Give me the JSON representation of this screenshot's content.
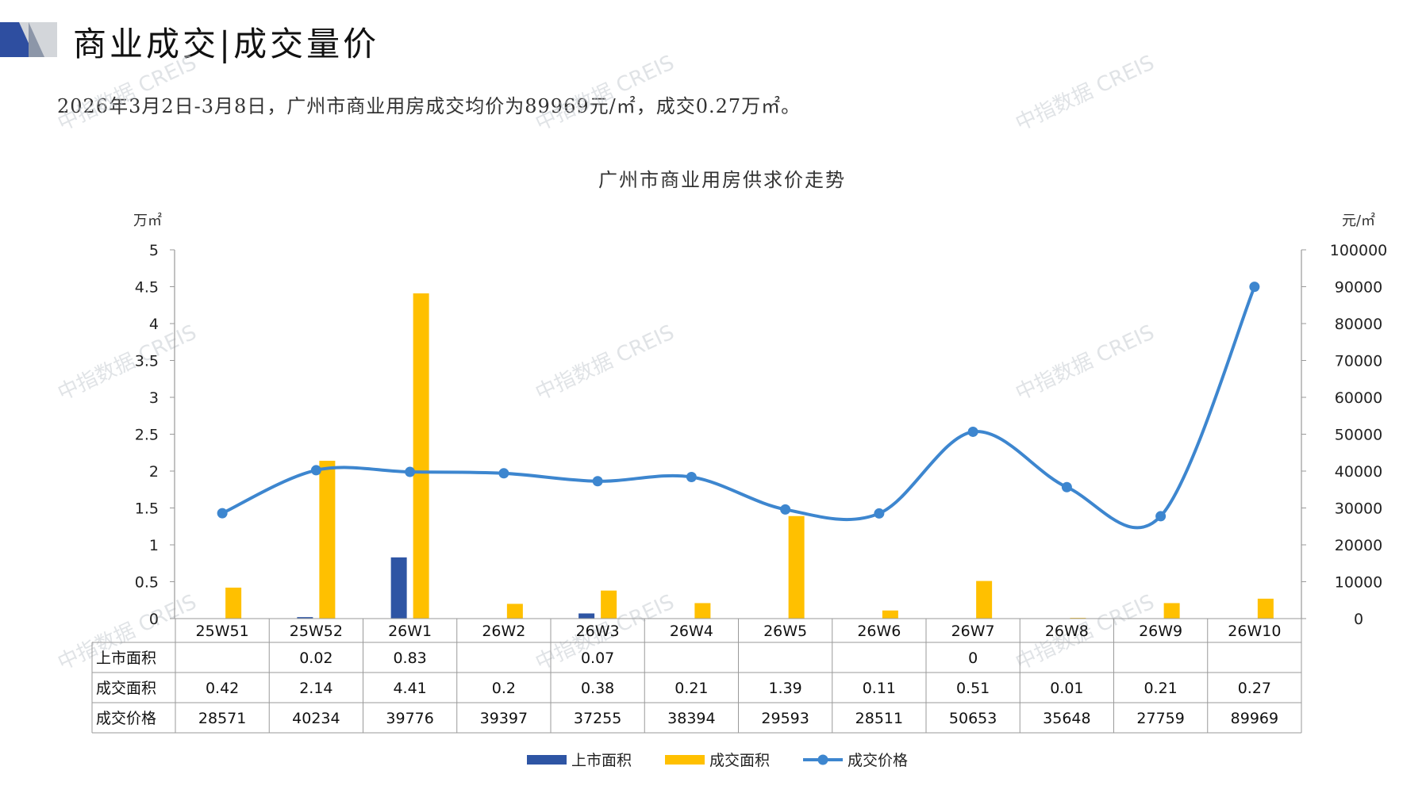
{
  "header": {
    "title": "商业成交|成交量价",
    "subtitle": "2026年3月2日-3月8日，广州市商业用房成交均价为89969元/㎡，成交0.27万㎡。"
  },
  "watermark": "中指数据 CREIS",
  "colors": {
    "supply": "#2e55a4",
    "deal_area": "#ffc000",
    "price": "#3d86cf",
    "logo_dark": "#2e4ea0",
    "logo_light": "#d3d6da"
  },
  "chart_data": {
    "type": "bar",
    "title": "广州市商业用房供求价走势",
    "y_left_unit": "万㎡",
    "y_right_unit": "元/㎡",
    "y_left_ticks": [
      "5",
      "4.5",
      "4",
      "3.5",
      "3",
      "2.5",
      "2",
      "1.5",
      "1",
      "0.5",
      "0"
    ],
    "y_right_ticks": [
      "100000",
      "90000",
      "80000",
      "70000",
      "60000",
      "50000",
      "40000",
      "30000",
      "20000",
      "10000",
      "0"
    ],
    "ylim_left": [
      0,
      5
    ],
    "ylim_right": [
      0,
      100000
    ],
    "categories": [
      "25W51",
      "25W52",
      "26W1",
      "26W2",
      "26W3",
      "26W4",
      "26W5",
      "26W6",
      "26W7",
      "26W8",
      "26W9",
      "26W10"
    ],
    "series": [
      {
        "name": "上市面积",
        "type": "bar",
        "axis": "left",
        "values": [
          null,
          0.02,
          0.83,
          null,
          0.07,
          null,
          null,
          null,
          0,
          null,
          null,
          null
        ],
        "labels": [
          "",
          "0.02",
          "0.83",
          "",
          "0.07",
          "",
          "",
          "",
          "0",
          "",
          "",
          ""
        ]
      },
      {
        "name": "成交面积",
        "type": "bar",
        "axis": "left",
        "values": [
          0.42,
          2.14,
          4.41,
          0.2,
          0.38,
          0.21,
          1.39,
          0.11,
          0.51,
          0.01,
          0.21,
          0.27
        ],
        "labels": [
          "0.42",
          "2.14",
          "4.41",
          "0.2",
          "0.38",
          "0.21",
          "1.39",
          "0.11",
          "0.51",
          "0.01",
          "0.21",
          "0.27"
        ]
      },
      {
        "name": "成交价格",
        "type": "line",
        "axis": "right",
        "values": [
          28571,
          40234,
          39776,
          39397,
          37255,
          38394,
          29593,
          28511,
          50653,
          35648,
          27759,
          89969
        ],
        "labels": [
          "28571",
          "40234",
          "39776",
          "39397",
          "37255",
          "38394",
          "29593",
          "28511",
          "50653",
          "35648",
          "27759",
          "89969"
        ]
      }
    ],
    "legend_position": "bottom",
    "grid": false
  }
}
